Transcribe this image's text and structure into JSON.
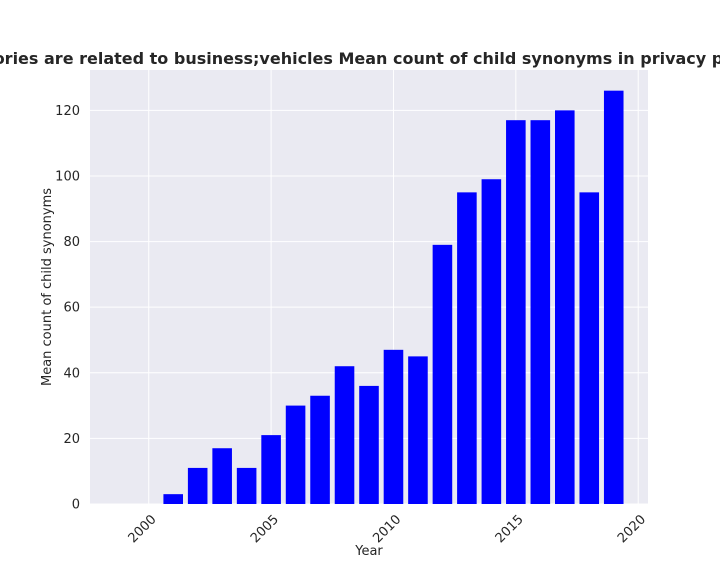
{
  "chart_data": {
    "type": "bar",
    "title": "categories are related to business;vehicles Mean count of child synonyms in privacy policies",
    "xlabel": "Year",
    "ylabel": "Mean count of child synonyms",
    "x": [
      2001,
      2002,
      2003,
      2004,
      2005,
      2006,
      2007,
      2008,
      2009,
      2010,
      2011,
      2012,
      2013,
      2014,
      2015,
      2016,
      2017,
      2018,
      2019
    ],
    "values": [
      3,
      11,
      17,
      11,
      21,
      30,
      33,
      42,
      36,
      47,
      45,
      79,
      95,
      99,
      117,
      117,
      120,
      95,
      126
    ],
    "xlim": [
      1997.6,
      2020.4
    ],
    "ylim": [
      0,
      132.3
    ],
    "x_ticks": [
      "2000",
      "2005",
      "2010",
      "2015",
      "2020"
    ],
    "y_ticks": [
      "0",
      "20",
      "40",
      "60",
      "80",
      "100",
      "120"
    ],
    "bar_color": "#0000ff",
    "plot_background": "#eaeaf2",
    "grid": true,
    "legend": false
  }
}
